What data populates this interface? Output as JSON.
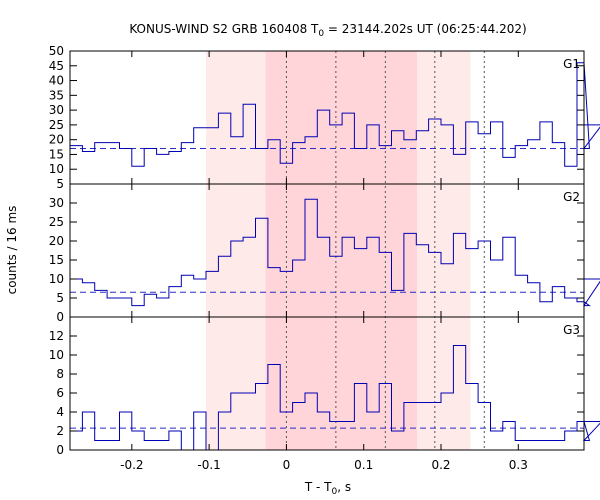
{
  "chart_data": {
    "type": "line",
    "title": "KONUS-WIND S2 GRB 160408 T",
    "title_sub": "0",
    "title_tail": " = 23144.202s UT (06:25:44.202)",
    "xlabel": "T - T",
    "xlabel_sub": "0",
    "xlabel_tail": ", s",
    "ylabel": "counts / 16 ms",
    "xlim": [
      -0.28,
      0.385
    ],
    "xticks": [
      -0.2,
      -0.1,
      0,
      0.1,
      0.2,
      0.3
    ],
    "xtick_labels": [
      "-0.2",
      "-0.1",
      "0",
      "0.1",
      "0.2",
      "0.3"
    ],
    "bin_width": 0.016,
    "x_start": -0.28,
    "colors": {
      "light_band": "#ffeaea",
      "dark_band": "#ffd5d9",
      "series": "#0000b4",
      "background_line": "#2b2bc4",
      "vertical_lines": "#555555"
    },
    "shaded_intervals": [
      {
        "x0": -0.104,
        "x1": 0.238,
        "shade": "light"
      },
      {
        "x0": -0.027,
        "x1": 0.169,
        "shade": "dark"
      }
    ],
    "vertical_lines": [
      0.0,
      0.064,
      0.128,
      0.192,
      0.256
    ],
    "panels": [
      {
        "name": "G1",
        "ylim": [
          5,
          50
        ],
        "yticks": [
          5,
          10,
          15,
          20,
          25,
          30,
          35,
          40,
          45,
          50
        ],
        "background": 17,
        "values": [
          18,
          16,
          19,
          19,
          17,
          11,
          17,
          15,
          16,
          19,
          24,
          24,
          29,
          21,
          32,
          17,
          20,
          12,
          19,
          21,
          30,
          25,
          29,
          17,
          25,
          18,
          23,
          20,
          23,
          27,
          25,
          15,
          26,
          22,
          26,
          14,
          18,
          20,
          26,
          19,
          11,
          46,
          17,
          25
        ]
      },
      {
        "name": "G2",
        "ylim": [
          0,
          35
        ],
        "yticks": [
          0,
          5,
          10,
          15,
          20,
          25,
          30
        ],
        "background": 6.5,
        "values": [
          10,
          9,
          7,
          5,
          5,
          3,
          6,
          5,
          8,
          11,
          10,
          12,
          16,
          20,
          21,
          26,
          13,
          12,
          15,
          31,
          21,
          16,
          21,
          18,
          21,
          17,
          7,
          22,
          19,
          17,
          14,
          22,
          18,
          20,
          15,
          21,
          11,
          9,
          4,
          8,
          5,
          4,
          3,
          10
        ]
      },
      {
        "name": "G3",
        "ylim": [
          0,
          14
        ],
        "yticks": [
          0,
          2,
          4,
          6,
          8,
          10,
          12
        ],
        "background": 2.3,
        "values": [
          2,
          4,
          1,
          1,
          4,
          2,
          1,
          1,
          2,
          0,
          4,
          0,
          4,
          6,
          6,
          7,
          9,
          4,
          5,
          6,
          4,
          3,
          3,
          7,
          4,
          7,
          2,
          5,
          5,
          5,
          6,
          11,
          7,
          5,
          2,
          3,
          1,
          1,
          1,
          1,
          2,
          3,
          1,
          3
        ]
      }
    ]
  }
}
